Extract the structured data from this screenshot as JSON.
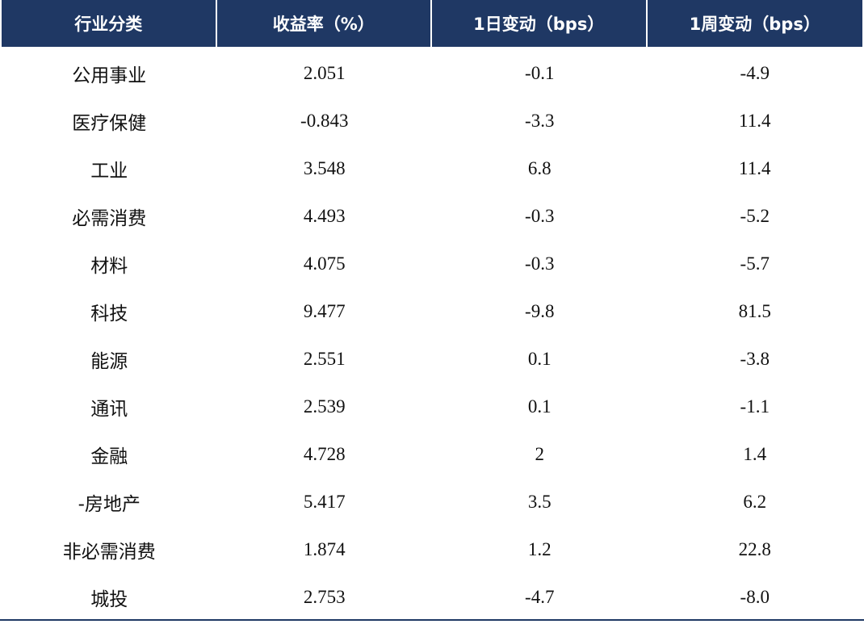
{
  "table": {
    "header": [
      "行业分类",
      "收益率（%）",
      "1日变动（bps）",
      "1周变动（bps）"
    ],
    "rows": [
      [
        "公用事业",
        "2.051",
        "-0.1",
        "-4.9"
      ],
      [
        "医疗保健",
        "-0.843",
        "-3.3",
        "11.4"
      ],
      [
        "工业",
        "3.548",
        "6.8",
        "11.4"
      ],
      [
        "必需消费",
        "4.493",
        "-0.3",
        "-5.2"
      ],
      [
        "材料",
        "4.075",
        "-0.3",
        "-5.7"
      ],
      [
        "科技",
        "9.477",
        "-9.8",
        "81.5"
      ],
      [
        "能源",
        "2.551",
        "0.1",
        "-3.8"
      ],
      [
        "通讯",
        "2.539",
        "0.1",
        "-1.1"
      ],
      [
        "金融",
        "4.728",
        "2",
        "1.4"
      ],
      [
        "-房地产",
        "5.417",
        "3.5",
        "6.2"
      ],
      [
        "非必需消费",
        "1.874",
        "1.2",
        "22.8"
      ],
      [
        "城投",
        "2.753",
        "-4.7",
        "-8.0"
      ]
    ]
  }
}
